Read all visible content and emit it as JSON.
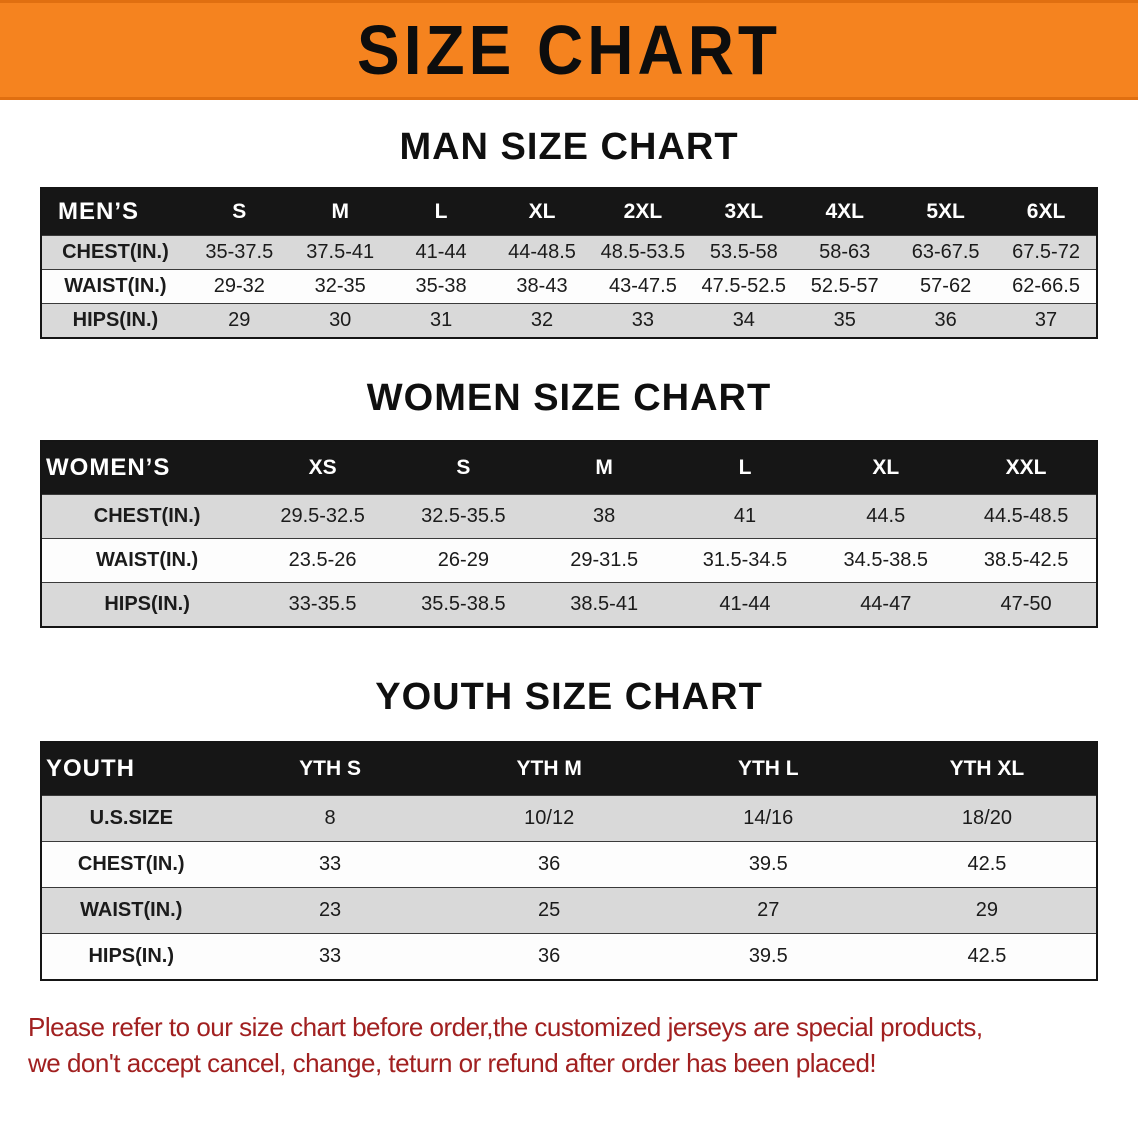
{
  "colors": {
    "accent-orange": "#f5831f",
    "header-black": "#161616",
    "row-gray": "#d9d9d9",
    "row-white": "#fdfdfd",
    "disclaimer-red": "#a12020",
    "text-black": "#1b1b1b"
  },
  "banner": {
    "title": "SIZE CHART"
  },
  "sections": {
    "men": {
      "heading": "MAN SIZE CHART",
      "table": {
        "header": [
          "MEN’S",
          "S",
          "M",
          "L",
          "XL",
          "2XL",
          "3XL",
          "4XL",
          "5XL",
          "6XL"
        ],
        "rows": [
          [
            "CHEST(IN.)",
            "35-37.5",
            "37.5-41",
            "41-44",
            "44-48.5",
            "48.5-53.5",
            "53.5-58",
            "58-63",
            "63-67.5",
            "67.5-72"
          ],
          [
            "WAIST(IN.)",
            "29-32",
            "32-35",
            "35-38",
            "38-43",
            "43-47.5",
            "47.5-52.5",
            "52.5-57",
            "57-62",
            "62-66.5"
          ],
          [
            "HIPS(IN.)",
            "29",
            "30",
            "31",
            "32",
            "33",
            "34",
            "35",
            "36",
            "37"
          ]
        ]
      }
    },
    "women": {
      "heading": "WOMEN SIZE CHART",
      "table": {
        "header": [
          "WOMEN’S",
          "XS",
          "S",
          "M",
          "L",
          "XL",
          "XXL"
        ],
        "rows": [
          [
            "CHEST(IN.)",
            "29.5-32.5",
            "32.5-35.5",
            "38",
            "41",
            "44.5",
            "44.5-48.5"
          ],
          [
            "WAIST(IN.)",
            "23.5-26",
            "26-29",
            "29-31.5",
            "31.5-34.5",
            "34.5-38.5",
            "38.5-42.5"
          ],
          [
            "HIPS(IN.)",
            "33-35.5",
            "35.5-38.5",
            "38.5-41",
            "41-44",
            "44-47",
            "47-50"
          ]
        ]
      }
    },
    "youth": {
      "heading": "YOUTH SIZE CHART",
      "table": {
        "header": [
          "YOUTH",
          "YTH S",
          "YTH M",
          "YTH L",
          "YTH XL"
        ],
        "rows": [
          [
            "U.S.SIZE",
            "8",
            "10/12",
            "14/16",
            "18/20"
          ],
          [
            "CHEST(IN.)",
            "33",
            "36",
            "39.5",
            "42.5"
          ],
          [
            "WAIST(IN.)",
            "23",
            "25",
            "27",
            "29"
          ],
          [
            "HIPS(IN.)",
            "33",
            "36",
            "39.5",
            "42.5"
          ]
        ]
      }
    }
  },
  "disclaimer": {
    "line1": "Please refer to our size chart before order,the customized jerseys are special products,",
    "line2": "we don't accept cancel, change, teturn or refund after order has been placed!"
  }
}
